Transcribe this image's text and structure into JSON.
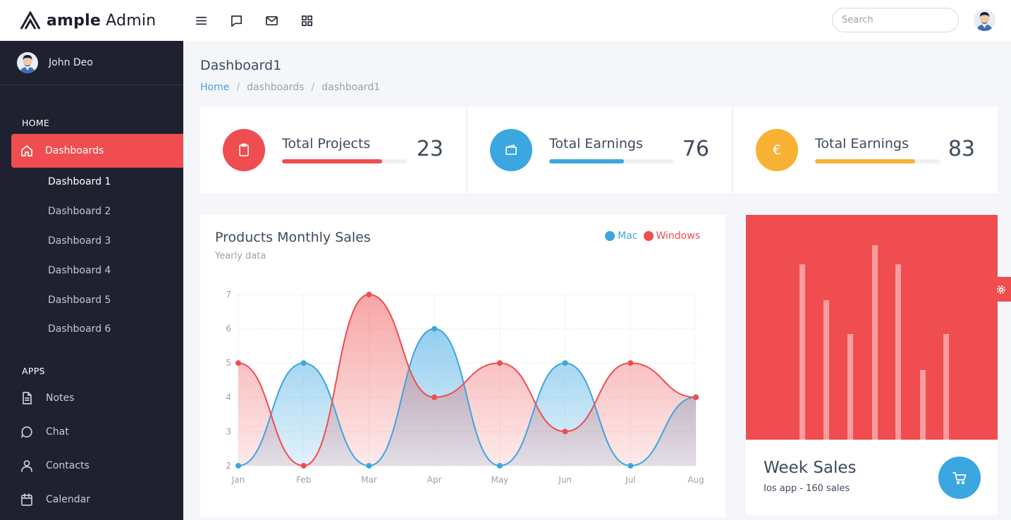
{
  "brand": {
    "bold": "ample",
    "light": " Admin"
  },
  "topbar": {
    "icons": [
      "menu-icon",
      "message-icon",
      "mail-icon",
      "apps-grid-icon"
    ],
    "search_placeholder": "Search"
  },
  "sidebar": {
    "user_name": "John Deo",
    "home_caption": "HOME",
    "active_item": "Dashboards",
    "sub_items": [
      "Dashboard 1",
      "Dashboard 2",
      "Dashboard 3",
      "Dashboard 4",
      "Dashboard 5",
      "Dashboard 6"
    ],
    "apps_caption": "APPS",
    "apps": [
      {
        "label": "Notes",
        "icon": "notes-icon"
      },
      {
        "label": "Chat",
        "icon": "chat-icon"
      },
      {
        "label": "Contacts",
        "icon": "contacts-icon"
      },
      {
        "label": "Calendar",
        "icon": "calendar-icon"
      }
    ]
  },
  "page": {
    "title": "Dashboard1",
    "breadcrumbs": [
      "Home",
      "dashboards",
      "dashboard1"
    ]
  },
  "stats": [
    {
      "label": "Total Projects",
      "value": "23",
      "progress": 0.8,
      "color": "#ef4d4f",
      "icon": "clipboard-icon"
    },
    {
      "label": "Total Earnings",
      "value": "76",
      "progress": 0.6,
      "color": "#3ba6e0",
      "icon": "wallet-icon"
    },
    {
      "label": "Total Earnings",
      "value": "83",
      "progress": 0.8,
      "color": "#f8b132",
      "icon": "euro-icon",
      "symbol": "€"
    }
  ],
  "chart": {
    "title": "Products Monthly Sales",
    "subtitle": "Yearly data"
  },
  "chart_data": {
    "type": "area",
    "categories": [
      "Jan",
      "Feb",
      "Mar",
      "Apr",
      "May",
      "Jun",
      "Jul",
      "Aug"
    ],
    "series": [
      {
        "name": "Mac",
        "values": [
          2,
          5,
          2,
          6,
          2,
          5,
          2,
          4
        ],
        "color": "#3ba6e0"
      },
      {
        "name": "Windows",
        "values": [
          5,
          2,
          7,
          4,
          5,
          3,
          5,
          4
        ],
        "color": "#ef4d4f"
      }
    ],
    "ylim": [
      2,
      7
    ],
    "yticks": [
      2,
      3,
      4,
      5,
      6,
      7
    ],
    "grid": true,
    "legend": "top-right"
  },
  "week_sales": {
    "title": "Week Sales",
    "subtitle": "Ios app - 160 sales",
    "bars": [
      0.83,
      0.66,
      0.5,
      0.92,
      0.83,
      0.33,
      0.5
    ]
  }
}
